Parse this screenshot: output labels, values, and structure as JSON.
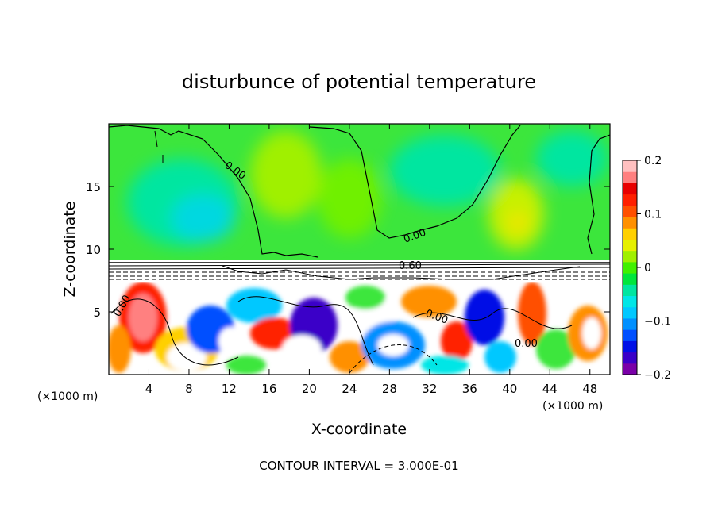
{
  "chart_data": {
    "type": "heatmap",
    "title": "disturbunce of potential temperature",
    "xlabel": "X-coordinate",
    "ylabel": "Z-coordinate",
    "x_unit_left": "(×1000 m)",
    "x_unit_right": "(×1000 m)",
    "xlim": [
      0,
      50
    ],
    "ylim": [
      0,
      20
    ],
    "x_ticks": [
      4,
      8,
      12,
      16,
      20,
      24,
      28,
      32,
      36,
      40,
      44,
      48
    ],
    "y_ticks": [
      5,
      10,
      15
    ],
    "colorbar": {
      "min": -0.2,
      "max": 0.2,
      "tick_values": [
        0.2,
        0.1,
        0,
        -0.1,
        -0.2
      ],
      "tick_labels": [
        "0.2",
        "0.1",
        "0",
        "−0.1",
        "−0.2"
      ],
      "colors": [
        "#7a00a8",
        "#3a00c8",
        "#0010e6",
        "#0050ff",
        "#0090ff",
        "#00c8ff",
        "#00e6e6",
        "#00e6a0",
        "#00e63c",
        "#40f000",
        "#a0f000",
        "#e6f000",
        "#ffd000",
        "#ff9000",
        "#ff5000",
        "#ff2000",
        "#e80000",
        "#ff8080",
        "#ffc0c0"
      ]
    },
    "contour_labels": [
      "0.00",
      "0.00",
      "0.60",
      "0.00",
      "0.00",
      "0.00"
    ],
    "contour_interval_text": "CONTOUR INTERVAL = 3.000E-01"
  }
}
